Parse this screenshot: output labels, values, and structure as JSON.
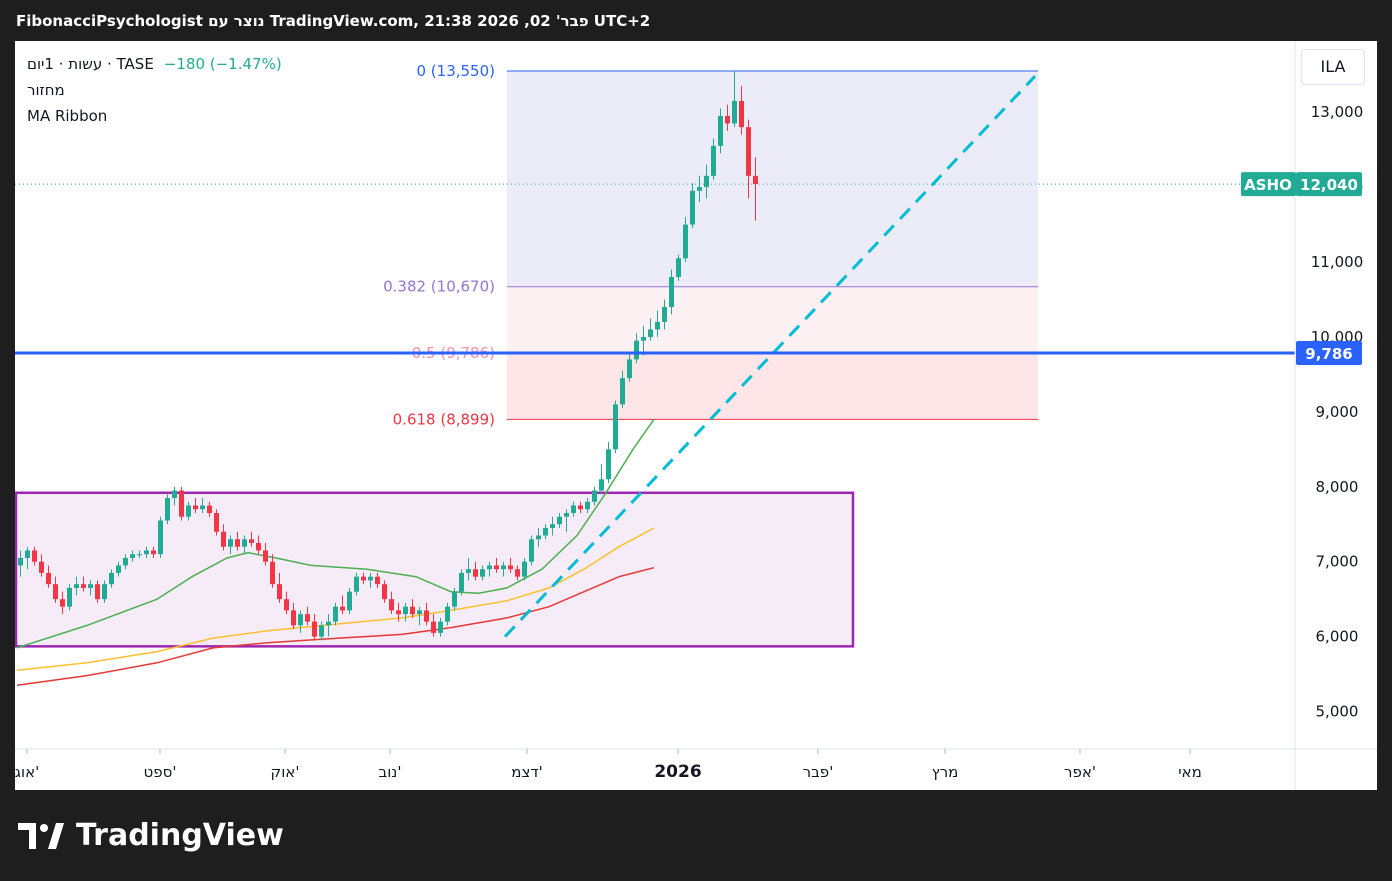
{
  "header": {
    "snapshot_text": "FibonacciPsychologist נוצר עם TradingView.com, פבר' 02, 2026 21:38 UTC+2"
  },
  "legend": {
    "symbol_line": "עשות · 1יום · TASE",
    "change": "−180 (−1.47%)",
    "volume_label": "מחזור",
    "indicator_label": "MA Ribbon"
  },
  "currency_button": "ILA",
  "footer": {
    "brand": "TradingView"
  },
  "colors": {
    "up": "#22ab94",
    "down": "#f23645",
    "ma_green": "#4caf50",
    "ma_yellow": "#fbc02d",
    "ma_red": "#e53935",
    "price_line": "#2962ff",
    "box_border": "#9c27b0",
    "box_fill": "#f3e5f5",
    "trend": "#00bcd4",
    "fib_top": "#2962ff",
    "fib_382": "#9575cd",
    "fib_50": "#f48fb1",
    "fib_618": "#f23645"
  },
  "chart_data": {
    "type": "candlestick",
    "x_labels": [
      "אוג'",
      "ספט'",
      "אוק'",
      "נוב'",
      "דצמ'",
      "2026",
      "פבר'",
      "מרץ",
      "אפר'",
      "מאי"
    ],
    "y_ticks": [
      "5,000",
      "6,000",
      "7,000",
      "8,000",
      "9,000",
      "10,000",
      "11,000",
      "12,000",
      "13,000"
    ],
    "ylim": [
      4500,
      13950
    ],
    "last_price": {
      "symbol": "ASHO",
      "value": "12,040",
      "y": 12040
    },
    "horizontal_line": {
      "value": "9,786",
      "y": 9786
    },
    "fibonacci": [
      {
        "label": "0 (13,550)",
        "y": 13550
      },
      {
        "label": "0.382 (10,670)",
        "y": 10670
      },
      {
        "label": "0.5 (9,786)",
        "y": 9786
      },
      {
        "label": "0.618 (8,899)",
        "y": 8899
      }
    ],
    "rectangle": {
      "y_top": 7920,
      "y_bottom": 5870
    },
    "trendline": {
      "from_y": 6000,
      "to_y": 13480
    },
    "candles": [
      {
        "o": 6950,
        "h": 7150,
        "l": 6800,
        "c": 7050
      },
      {
        "o": 7050,
        "h": 7200,
        "l": 6900,
        "c": 7150
      },
      {
        "o": 7150,
        "h": 7200,
        "l": 6950,
        "c": 7000
      },
      {
        "o": 7000,
        "h": 7100,
        "l": 6800,
        "c": 6850
      },
      {
        "o": 6850,
        "h": 6950,
        "l": 6650,
        "c": 6700
      },
      {
        "o": 6700,
        "h": 6800,
        "l": 6450,
        "c": 6500
      },
      {
        "o": 6500,
        "h": 6600,
        "l": 6300,
        "c": 6400
      },
      {
        "o": 6400,
        "h": 6700,
        "l": 6350,
        "c": 6650
      },
      {
        "o": 6650,
        "h": 6800,
        "l": 6550,
        "c": 6700
      },
      {
        "o": 6700,
        "h": 6800,
        "l": 6600,
        "c": 6650
      },
      {
        "o": 6650,
        "h": 6750,
        "l": 6550,
        "c": 6700
      },
      {
        "o": 6700,
        "h": 6750,
        "l": 6450,
        "c": 6500
      },
      {
        "o": 6500,
        "h": 6750,
        "l": 6450,
        "c": 6700
      },
      {
        "o": 6700,
        "h": 6900,
        "l": 6650,
        "c": 6850
      },
      {
        "o": 6850,
        "h": 7000,
        "l": 6800,
        "c": 6950
      },
      {
        "o": 6950,
        "h": 7100,
        "l": 6900,
        "c": 7050
      },
      {
        "o": 7050,
        "h": 7150,
        "l": 7000,
        "c": 7100
      },
      {
        "o": 7100,
        "h": 7150,
        "l": 7050,
        "c": 7100
      },
      {
        "o": 7100,
        "h": 7200,
        "l": 7050,
        "c": 7150
      },
      {
        "o": 7150,
        "h": 7200,
        "l": 7050,
        "c": 7100
      },
      {
        "o": 7100,
        "h": 7600,
        "l": 7050,
        "c": 7550
      },
      {
        "o": 7550,
        "h": 7900,
        "l": 7500,
        "c": 7850
      },
      {
        "o": 7850,
        "h": 8000,
        "l": 7750,
        "c": 7950
      },
      {
        "o": 7950,
        "h": 8000,
        "l": 7550,
        "c": 7600
      },
      {
        "o": 7600,
        "h": 7800,
        "l": 7550,
        "c": 7750
      },
      {
        "o": 7750,
        "h": 7850,
        "l": 7650,
        "c": 7700
      },
      {
        "o": 7700,
        "h": 7850,
        "l": 7650,
        "c": 7750
      },
      {
        "o": 7750,
        "h": 7800,
        "l": 7600,
        "c": 7650
      },
      {
        "o": 7650,
        "h": 7700,
        "l": 7350,
        "c": 7400
      },
      {
        "o": 7400,
        "h": 7500,
        "l": 7150,
        "c": 7200
      },
      {
        "o": 7200,
        "h": 7350,
        "l": 7100,
        "c": 7300
      },
      {
        "o": 7300,
        "h": 7400,
        "l": 7150,
        "c": 7200
      },
      {
        "o": 7200,
        "h": 7350,
        "l": 7100,
        "c": 7300
      },
      {
        "o": 7300,
        "h": 7400,
        "l": 7200,
        "c": 7250
      },
      {
        "o": 7250,
        "h": 7350,
        "l": 7100,
        "c": 7150
      },
      {
        "o": 7150,
        "h": 7250,
        "l": 6950,
        "c": 7000
      },
      {
        "o": 7000,
        "h": 7100,
        "l": 6650,
        "c": 6700
      },
      {
        "o": 6700,
        "h": 6850,
        "l": 6450,
        "c": 6500
      },
      {
        "o": 6500,
        "h": 6600,
        "l": 6300,
        "c": 6350
      },
      {
        "o": 6350,
        "h": 6450,
        "l": 6100,
        "c": 6150
      },
      {
        "o": 6150,
        "h": 6350,
        "l": 6050,
        "c": 6300
      },
      {
        "o": 6300,
        "h": 6400,
        "l": 6150,
        "c": 6200
      },
      {
        "o": 6200,
        "h": 6300,
        "l": 5950,
        "c": 6000
      },
      {
        "o": 6000,
        "h": 6200,
        "l": 5950,
        "c": 6150
      },
      {
        "o": 6150,
        "h": 6300,
        "l": 6000,
        "c": 6200
      },
      {
        "o": 6200,
        "h": 6450,
        "l": 6150,
        "c": 6400
      },
      {
        "o": 6400,
        "h": 6550,
        "l": 6300,
        "c": 6350
      },
      {
        "o": 6350,
        "h": 6650,
        "l": 6300,
        "c": 6600
      },
      {
        "o": 6600,
        "h": 6850,
        "l": 6550,
        "c": 6800
      },
      {
        "o": 6800,
        "h": 6850,
        "l": 6700,
        "c": 6750
      },
      {
        "o": 6750,
        "h": 6850,
        "l": 6650,
        "c": 6800
      },
      {
        "o": 6800,
        "h": 6850,
        "l": 6650,
        "c": 6700
      },
      {
        "o": 6700,
        "h": 6750,
        "l": 6450,
        "c": 6500
      },
      {
        "o": 6500,
        "h": 6600,
        "l": 6300,
        "c": 6350
      },
      {
        "o": 6350,
        "h": 6450,
        "l": 6200,
        "c": 6300
      },
      {
        "o": 6300,
        "h": 6450,
        "l": 6200,
        "c": 6400
      },
      {
        "o": 6400,
        "h": 6500,
        "l": 6250,
        "c": 6300
      },
      {
        "o": 6300,
        "h": 6400,
        "l": 6150,
        "c": 6350
      },
      {
        "o": 6350,
        "h": 6450,
        "l": 6150,
        "c": 6200
      },
      {
        "o": 6200,
        "h": 6300,
        "l": 6000,
        "c": 6050
      },
      {
        "o": 6050,
        "h": 6250,
        "l": 6000,
        "c": 6200
      },
      {
        "o": 6200,
        "h": 6450,
        "l": 6150,
        "c": 6400
      },
      {
        "o": 6400,
        "h": 6650,
        "l": 6350,
        "c": 6600
      },
      {
        "o": 6600,
        "h": 6900,
        "l": 6550,
        "c": 6850
      },
      {
        "o": 6850,
        "h": 7050,
        "l": 6750,
        "c": 6900
      },
      {
        "o": 6900,
        "h": 7000,
        "l": 6750,
        "c": 6800
      },
      {
        "o": 6800,
        "h": 6950,
        "l": 6750,
        "c": 6900
      },
      {
        "o": 6900,
        "h": 7000,
        "l": 6800,
        "c": 6950
      },
      {
        "o": 6950,
        "h": 7050,
        "l": 6850,
        "c": 6900
      },
      {
        "o": 6900,
        "h": 7000,
        "l": 6800,
        "c": 6950
      },
      {
        "o": 6950,
        "h": 7050,
        "l": 6850,
        "c": 6900
      },
      {
        "o": 6900,
        "h": 6950,
        "l": 6750,
        "c": 6800
      },
      {
        "o": 6800,
        "h": 7050,
        "l": 6750,
        "c": 7000
      },
      {
        "o": 7000,
        "h": 7350,
        "l": 6950,
        "c": 7300
      },
      {
        "o": 7300,
        "h": 7450,
        "l": 7200,
        "c": 7350
      },
      {
        "o": 7350,
        "h": 7500,
        "l": 7300,
        "c": 7450
      },
      {
        "o": 7450,
        "h": 7600,
        "l": 7350,
        "c": 7500
      },
      {
        "o": 7500,
        "h": 7650,
        "l": 7450,
        "c": 7600
      },
      {
        "o": 7600,
        "h": 7700,
        "l": 7400,
        "c": 7650
      },
      {
        "o": 7650,
        "h": 7800,
        "l": 7600,
        "c": 7750
      },
      {
        "o": 7750,
        "h": 7800,
        "l": 7650,
        "c": 7700
      },
      {
        "o": 7700,
        "h": 7850,
        "l": 7650,
        "c": 7800
      },
      {
        "o": 7800,
        "h": 8000,
        "l": 7750,
        "c": 7950
      },
      {
        "o": 7950,
        "h": 8300,
        "l": 7900,
        "c": 8100
      },
      {
        "o": 8100,
        "h": 8600,
        "l": 8050,
        "c": 8500
      },
      {
        "o": 8500,
        "h": 9150,
        "l": 8450,
        "c": 9100
      },
      {
        "o": 9100,
        "h": 9550,
        "l": 9050,
        "c": 9450
      },
      {
        "o": 9450,
        "h": 9800,
        "l": 9400,
        "c": 9700
      },
      {
        "o": 9700,
        "h": 10050,
        "l": 9650,
        "c": 9950
      },
      {
        "o": 9950,
        "h": 10150,
        "l": 9750,
        "c": 10000
      },
      {
        "o": 10000,
        "h": 10250,
        "l": 9950,
        "c": 10100
      },
      {
        "o": 10100,
        "h": 10350,
        "l": 10000,
        "c": 10200
      },
      {
        "o": 10200,
        "h": 10500,
        "l": 10100,
        "c": 10400
      },
      {
        "o": 10400,
        "h": 10900,
        "l": 10300,
        "c": 10800
      },
      {
        "o": 10800,
        "h": 11100,
        "l": 10750,
        "c": 11050
      },
      {
        "o": 11050,
        "h": 11600,
        "l": 11000,
        "c": 11500
      },
      {
        "o": 11500,
        "h": 12050,
        "l": 11450,
        "c": 11950
      },
      {
        "o": 11950,
        "h": 12150,
        "l": 11800,
        "c": 12000
      },
      {
        "o": 12000,
        "h": 12300,
        "l": 11850,
        "c": 12150
      },
      {
        "o": 12150,
        "h": 12650,
        "l": 12100,
        "c": 12550
      },
      {
        "o": 12550,
        "h": 13050,
        "l": 12450,
        "c": 12950
      },
      {
        "o": 12950,
        "h": 13100,
        "l": 12750,
        "c": 12850
      },
      {
        "o": 12850,
        "h": 13550,
        "l": 12800,
        "c": 13150
      },
      {
        "o": 13150,
        "h": 13350,
        "l": 12700,
        "c": 12800
      },
      {
        "o": 12800,
        "h": 12900,
        "l": 11850,
        "c": 12150
      },
      {
        "o": 12150,
        "h": 12400,
        "l": 11550,
        "c": 12040
      }
    ],
    "ma_series": [
      {
        "color": "#4caf50",
        "points": [
          [
            0,
            5850
          ],
          [
            10,
            6150
          ],
          [
            20,
            6500
          ],
          [
            25,
            6800
          ],
          [
            30,
            7050
          ],
          [
            33,
            7120
          ],
          [
            37,
            7050
          ],
          [
            42,
            6950
          ],
          [
            50,
            6900
          ],
          [
            57,
            6800
          ],
          [
            62,
            6600
          ],
          [
            66,
            6580
          ],
          [
            70,
            6650
          ],
          [
            75,
            6900
          ],
          [
            80,
            7350
          ],
          [
            84,
            7900
          ],
          [
            88,
            8500
          ],
          [
            91,
            8900
          ]
        ]
      },
      {
        "color": "#fbc02d",
        "points": [
          [
            0,
            5550
          ],
          [
            10,
            5650
          ],
          [
            20,
            5800
          ],
          [
            28,
            5980
          ],
          [
            36,
            6080
          ],
          [
            46,
            6170
          ],
          [
            55,
            6250
          ],
          [
            62,
            6350
          ],
          [
            70,
            6480
          ],
          [
            76,
            6650
          ],
          [
            81,
            6900
          ],
          [
            86,
            7200
          ],
          [
            91,
            7450
          ]
        ]
      },
      {
        "color": "#e53935",
        "points": [
          [
            0,
            5350
          ],
          [
            10,
            5480
          ],
          [
            20,
            5650
          ],
          [
            28,
            5850
          ],
          [
            36,
            5920
          ],
          [
            46,
            5980
          ],
          [
            55,
            6030
          ],
          [
            62,
            6120
          ],
          [
            70,
            6250
          ],
          [
            76,
            6400
          ],
          [
            81,
            6600
          ],
          [
            86,
            6800
          ],
          [
            91,
            6920
          ]
        ]
      }
    ]
  }
}
